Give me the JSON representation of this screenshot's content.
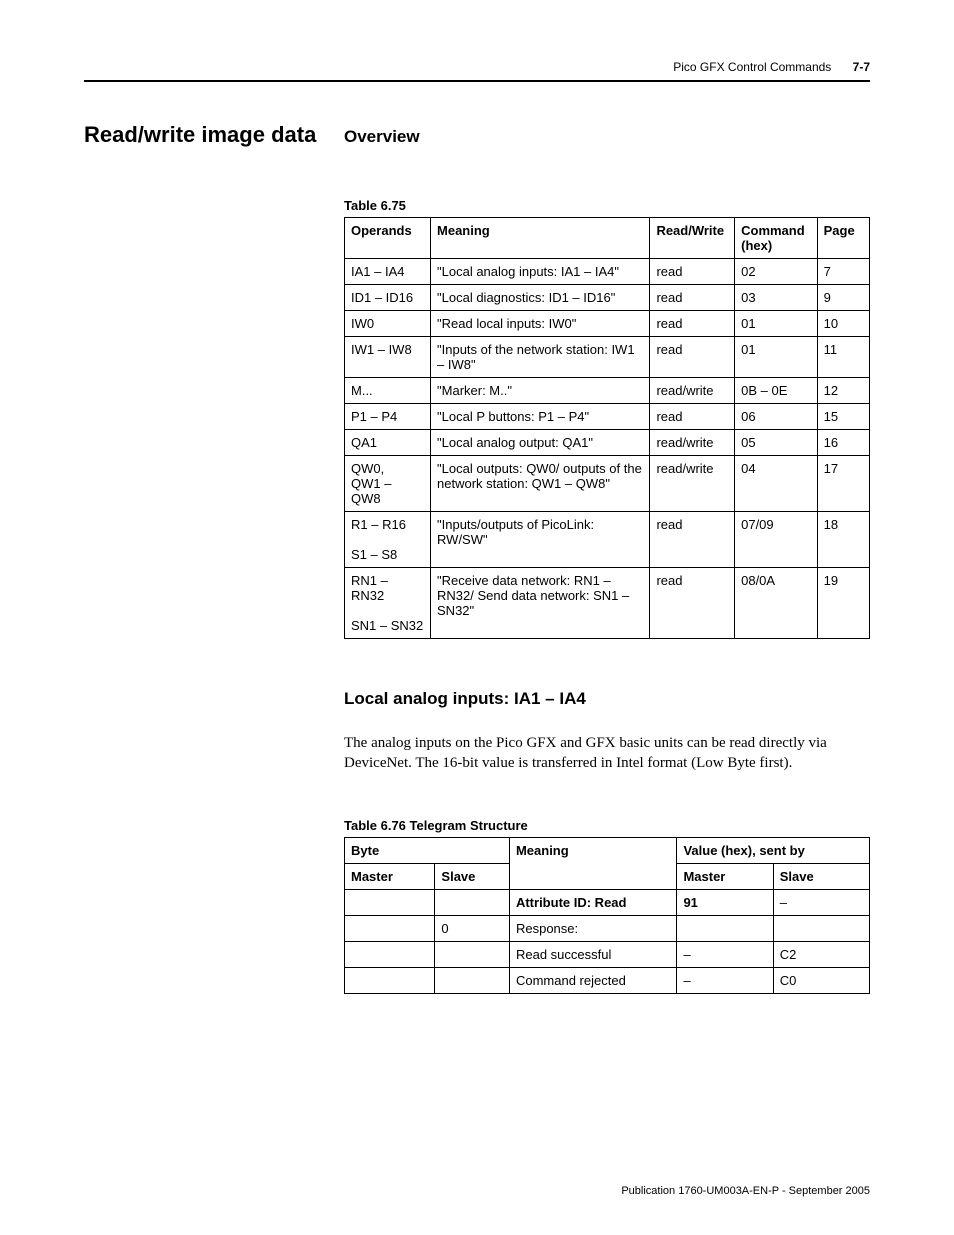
{
  "header": {
    "chapter": "Pico GFX Control Commands",
    "page": "7-7"
  },
  "section_title": "Read/write image data",
  "overview_label": "Overview",
  "table675": {
    "caption": "Table 6.75",
    "headers": [
      "Operands",
      "Meaning",
      "Read/Write",
      "Command (hex)",
      "Page"
    ],
    "rows": [
      [
        "IA1 – IA4",
        "\"Local analog inputs: IA1 – IA4\"",
        "read",
        "02",
        "7"
      ],
      [
        "ID1 – ID16",
        "\"Local diagnostics: ID1 – ID16\"",
        "read",
        "03",
        "9"
      ],
      [
        "IW0",
        "\"Read local inputs: IW0\"",
        "read",
        "01",
        "10"
      ],
      [
        "IW1 – IW8",
        "\"Inputs of the network station: IW1 – IW8\"",
        "read",
        "01",
        "11"
      ],
      [
        "M...",
        "\"Marker: M..\"",
        "read/write",
        "0B – 0E",
        "12"
      ],
      [
        "P1 – P4",
        "\"Local P buttons: P1 – P4\"",
        "read",
        "06",
        "15"
      ],
      [
        "QA1",
        "\"Local analog output: QA1\"",
        "read/write",
        "05",
        "16"
      ],
      [
        "QW0,\nQW1 – QW8",
        "\"Local outputs: QW0/ outputs of the network station: QW1 – QW8\"",
        "read/write",
        "04",
        "17"
      ],
      [
        "R1 – R16\n\nS1 – S8",
        "\"Inputs/outputs of PicoLink: RW/SW\"",
        "read",
        "07/09",
        "18"
      ],
      [
        "RN1 – RN32\n\nSN1 – SN32",
        "\"Receive data network: RN1 – RN32/ Send data network: SN1 – SN32\"",
        "read",
        "08/0A",
        "19"
      ]
    ]
  },
  "subsection_title": "Local analog inputs: IA1 – IA4",
  "body_text": "The analog inputs on the Pico GFX and GFX basic units can be read directly via DeviceNet. The 16-bit value is transferred in Intel format (Low Byte first).",
  "table676": {
    "caption": "Table 6.76 Telegram Structure",
    "header_row1": [
      "Byte",
      "Meaning",
      "Value (hex), sent by"
    ],
    "header_row2": [
      "Master",
      "Slave",
      "Master",
      "Slave"
    ],
    "rows": [
      [
        "",
        "",
        "Attribute ID: Read",
        "91",
        "–",
        true
      ],
      [
        "",
        "0",
        "Response:",
        "",
        "",
        false
      ],
      [
        "",
        "",
        "Read successful",
        "–",
        "C2",
        false
      ],
      [
        "",
        "",
        "Command rejected",
        "–",
        "C0",
        false
      ]
    ]
  },
  "footer": "Publication 1760-UM003A-EN-P - September 2005"
}
